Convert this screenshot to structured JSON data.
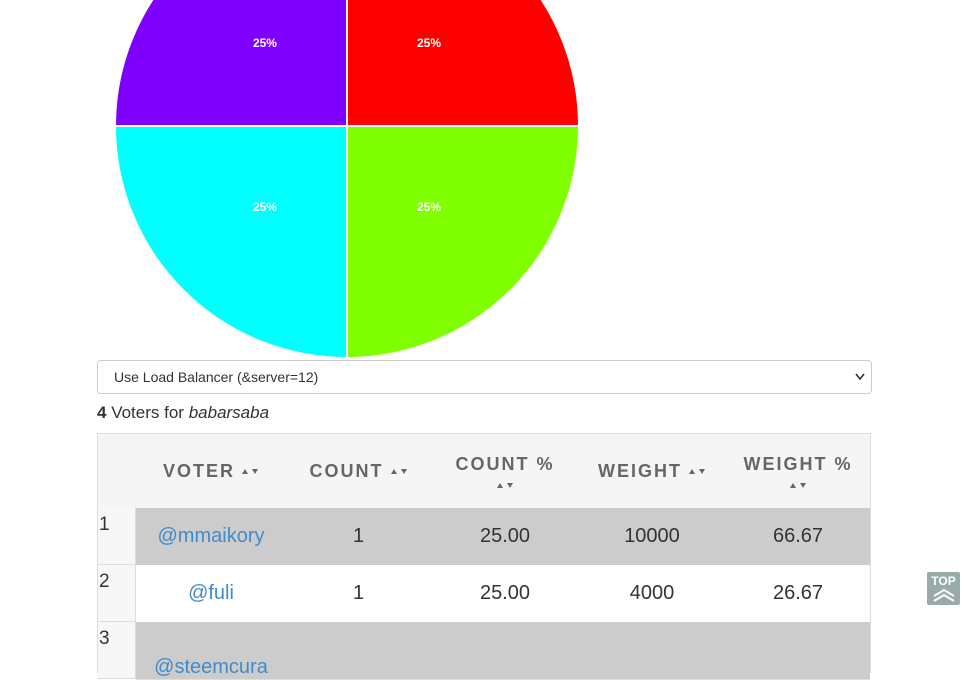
{
  "chart_data": {
    "type": "pie",
    "values": [
      25,
      25,
      25,
      25
    ],
    "value_labels": [
      "25%",
      "25%",
      "25%",
      "25%"
    ],
    "colors": [
      "#ff0000",
      "#80ff00",
      "#00ffff",
      "#8000ff"
    ]
  },
  "select": "Use Load Balancer (&server=12)",
  "summary": {
    "count": "4",
    "text": "Voters for",
    "account": "babarsaba"
  },
  "table": {
    "headers": [
      "VOTER",
      "COUNT",
      "COUNT %",
      "WEIGHT",
      "WEIGHT %"
    ],
    "rows": [
      [
        "1",
        "@mmaikory",
        "1",
        "25.00",
        "10000",
        "66.67"
      ],
      [
        "2",
        "@fuli",
        "1",
        "25.00",
        "4000",
        "26.67"
      ],
      [
        "3",
        "@steemcura"
      ]
    ]
  },
  "top_button": "TOP"
}
